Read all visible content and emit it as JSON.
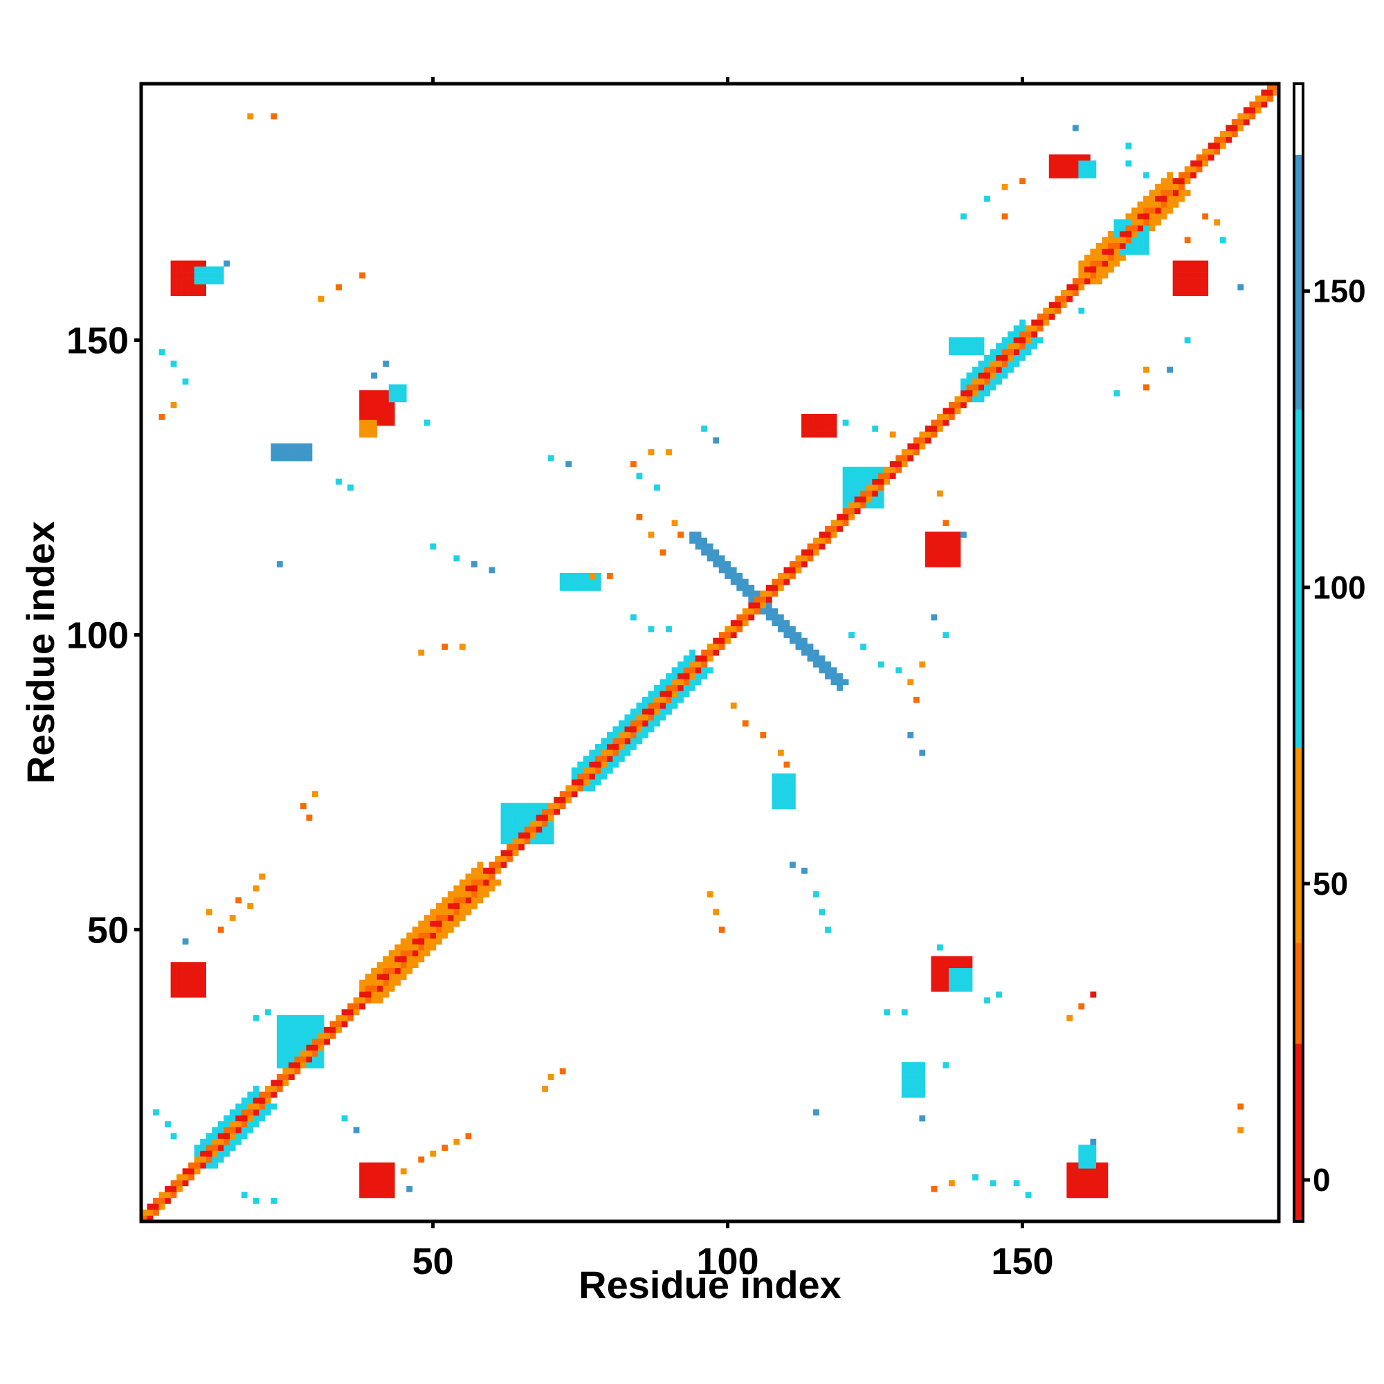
{
  "chart_data": {
    "type": "heatmap",
    "title": "",
    "xlabel": "Residue index",
    "ylabel": "Residue index",
    "xlim": [
      1,
      193
    ],
    "ylim": [
      1,
      193
    ],
    "x_ticks": [
      50,
      100,
      150
    ],
    "y_ticks": [
      50,
      100,
      150
    ],
    "x_tick_labels": [
      "50",
      "100",
      "150"
    ],
    "y_tick_labels": [
      "50",
      "100",
      "150"
    ],
    "colorbar": {
      "range": [
        -7,
        185
      ],
      "ticks": [
        0,
        50,
        100,
        150
      ],
      "tick_labels": [
        "0",
        "50",
        "100",
        "150"
      ],
      "bands": [
        {
          "from": -7,
          "to": 23,
          "color": "#e8160c"
        },
        {
          "from": 23,
          "to": 40,
          "color": "#fa6a00"
        },
        {
          "from": 40,
          "to": 73,
          "color": "#f79200"
        },
        {
          "from": 73,
          "to": 130,
          "color": "#1ed3e6"
        },
        {
          "from": 130,
          "to": 173,
          "color": "#3f97c9"
        },
        {
          "from": 173,
          "to": 185,
          "color": "#ffffff"
        }
      ]
    },
    "grid": false,
    "legend": "colorbar-right",
    "diagonal": {
      "from": 1,
      "to": 193,
      "colors": [
        "#e8160c",
        "#fa6a00",
        "#f79200"
      ]
    },
    "helix_bands": [
      {
        "start": 10,
        "end": 20,
        "width": 3,
        "color": "#1ed3e6"
      },
      {
        "start": 38,
        "end": 58,
        "width": 3,
        "color": "#f79200"
      },
      {
        "start": 74,
        "end": 94,
        "width": 3,
        "color": "#1ed3e6"
      },
      {
        "start": 140,
        "end": 150,
        "width": 3,
        "color": "#1ed3e6"
      },
      {
        "start": 160,
        "end": 175,
        "width": 3,
        "color": "#f79200"
      }
    ],
    "anti_diagonal": {
      "x_from": 94,
      "x_to": 119,
      "sum": 211,
      "color": "#3f97c9"
    },
    "patches": [
      {
        "x": 6,
        "y": 39,
        "w": 6,
        "h": 6,
        "color": "#e8160c"
      },
      {
        "x": 38,
        "y": 5,
        "w": 6,
        "h": 6,
        "color": "#e8160c"
      },
      {
        "x": 6,
        "y": 158,
        "w": 6,
        "h": 6,
        "color": "#e8160c"
      },
      {
        "x": 158,
        "y": 5,
        "w": 7,
        "h": 6,
        "color": "#e8160c"
      },
      {
        "x": 38,
        "y": 136,
        "w": 6,
        "h": 6,
        "color": "#e8160c"
      },
      {
        "x": 135,
        "y": 40,
        "w": 7,
        "h": 6,
        "color": "#e8160c"
      },
      {
        "x": 113,
        "y": 134,
        "w": 6,
        "h": 4,
        "color": "#e8160c"
      },
      {
        "x": 134,
        "y": 112,
        "w": 6,
        "h": 6,
        "color": "#e8160c"
      },
      {
        "x": 155,
        "y": 178,
        "w": 7,
        "h": 4,
        "color": "#e8160c"
      },
      {
        "x": 176,
        "y": 158,
        "w": 6,
        "h": 6,
        "color": "#e8160c"
      },
      {
        "x": 62,
        "y": 65,
        "w": 9,
        "h": 7,
        "color": "#1ed3e6"
      },
      {
        "x": 24,
        "y": 27,
        "w": 8,
        "h": 9,
        "color": "#1ed3e6"
      },
      {
        "x": 120,
        "y": 122,
        "w": 7,
        "h": 7,
        "color": "#1ed3e6"
      },
      {
        "x": 138,
        "y": 148,
        "w": 6,
        "h": 3,
        "color": "#1ed3e6"
      },
      {
        "x": 166,
        "y": 165,
        "w": 6,
        "h": 6,
        "color": "#1ed3e6"
      },
      {
        "x": 130,
        "y": 22,
        "w": 4,
        "h": 6,
        "color": "#1ed3e6"
      },
      {
        "x": 108,
        "y": 71,
        "w": 4,
        "h": 6,
        "color": "#1ed3e6"
      },
      {
        "x": 72,
        "y": 108,
        "w": 7,
        "h": 3,
        "color": "#1ed3e6"
      },
      {
        "x": 23,
        "y": 130,
        "w": 7,
        "h": 3,
        "color": "#3f97c9"
      },
      {
        "x": 43,
        "y": 140,
        "w": 3,
        "h": 3,
        "color": "#1ed3e6"
      },
      {
        "x": 10,
        "y": 160,
        "w": 5,
        "h": 3,
        "color": "#1ed3e6"
      },
      {
        "x": 160,
        "y": 10,
        "w": 3,
        "h": 4,
        "color": "#1ed3e6"
      },
      {
        "x": 138,
        "y": 40,
        "w": 4,
        "h": 4,
        "color": "#1ed3e6"
      },
      {
        "x": 38,
        "y": 134,
        "w": 3,
        "h": 3,
        "color": "#f79200"
      },
      {
        "x": 160,
        "y": 178,
        "w": 3,
        "h": 3,
        "color": "#1ed3e6"
      }
    ],
    "speckles": [
      {
        "x": 18,
        "y": 5,
        "color": "#1ed3e6"
      },
      {
        "x": 20,
        "y": 4,
        "color": "#1ed3e6"
      },
      {
        "x": 23,
        "y": 4,
        "color": "#1ed3e6"
      },
      {
        "x": 46,
        "y": 6,
        "color": "#3f97c9"
      },
      {
        "x": 3,
        "y": 19,
        "color": "#1ed3e6"
      },
      {
        "x": 5,
        "y": 17,
        "color": "#1ed3e6"
      },
      {
        "x": 6,
        "y": 15,
        "color": "#1ed3e6"
      },
      {
        "x": 35,
        "y": 18,
        "color": "#1ed3e6"
      },
      {
        "x": 37,
        "y": 16,
        "color": "#3f97c9"
      },
      {
        "x": 20,
        "y": 35,
        "color": "#1ed3e6"
      },
      {
        "x": 22,
        "y": 36,
        "color": "#1ed3e6"
      },
      {
        "x": 8,
        "y": 48,
        "color": "#3f97c9"
      },
      {
        "x": 12,
        "y": 53,
        "color": "#f79200"
      },
      {
        "x": 14,
        "y": 50,
        "color": "#fa6a00"
      },
      {
        "x": 16,
        "y": 52,
        "color": "#f79200"
      },
      {
        "x": 17,
        "y": 55,
        "color": "#fa6a00"
      },
      {
        "x": 19,
        "y": 54,
        "color": "#f79200"
      },
      {
        "x": 20,
        "y": 57,
        "color": "#f79200"
      },
      {
        "x": 21,
        "y": 59,
        "color": "#f79200"
      },
      {
        "x": 48,
        "y": 11,
        "color": "#fa6a00"
      },
      {
        "x": 50,
        "y": 12,
        "color": "#f79200"
      },
      {
        "x": 52,
        "y": 13,
        "color": "#fa6a00"
      },
      {
        "x": 54,
        "y": 14,
        "color": "#f79200"
      },
      {
        "x": 56,
        "y": 15,
        "color": "#fa6a00"
      },
      {
        "x": 45,
        "y": 9,
        "color": "#f79200"
      },
      {
        "x": 70,
        "y": 25,
        "color": "#f79200"
      },
      {
        "x": 72,
        "y": 26,
        "color": "#fa6a00"
      },
      {
        "x": 69,
        "y": 23,
        "color": "#f79200"
      },
      {
        "x": 28,
        "y": 71,
        "color": "#fa6a00"
      },
      {
        "x": 30,
        "y": 73,
        "color": "#f79200"
      },
      {
        "x": 29,
        "y": 69,
        "color": "#fa6a00"
      },
      {
        "x": 48,
        "y": 97,
        "color": "#f79200"
      },
      {
        "x": 52,
        "y": 98,
        "color": "#fa6a00"
      },
      {
        "x": 55,
        "y": 98,
        "color": "#f79200"
      },
      {
        "x": 98,
        "y": 53,
        "color": "#f79200"
      },
      {
        "x": 99,
        "y": 50,
        "color": "#fa6a00"
      },
      {
        "x": 97,
        "y": 56,
        "color": "#f79200"
      },
      {
        "x": 111,
        "y": 61,
        "color": "#3f97c9"
      },
      {
        "x": 113,
        "y": 60,
        "color": "#3f97c9"
      },
      {
        "x": 115,
        "y": 56,
        "color": "#1ed3e6"
      },
      {
        "x": 116,
        "y": 53,
        "color": "#1ed3e6"
      },
      {
        "x": 117,
        "y": 50,
        "color": "#1ed3e6"
      },
      {
        "x": 103,
        "y": 85,
        "color": "#fa6a00"
      },
      {
        "x": 101,
        "y": 88,
        "color": "#f79200"
      },
      {
        "x": 106,
        "y": 83,
        "color": "#fa6a00"
      },
      {
        "x": 109,
        "y": 80,
        "color": "#f79200"
      },
      {
        "x": 110,
        "y": 78,
        "color": "#fa6a00"
      },
      {
        "x": 84,
        "y": 103,
        "color": "#1ed3e6"
      },
      {
        "x": 87,
        "y": 101,
        "color": "#1ed3e6"
      },
      {
        "x": 90,
        "y": 101,
        "color": "#1ed3e6"
      },
      {
        "x": 89,
        "y": 114,
        "color": "#fa6a00"
      },
      {
        "x": 85,
        "y": 120,
        "color": "#fa6a00"
      },
      {
        "x": 87,
        "y": 117,
        "color": "#f79200"
      },
      {
        "x": 91,
        "y": 119,
        "color": "#f79200"
      },
      {
        "x": 92,
        "y": 117,
        "color": "#fa6a00"
      },
      {
        "x": 84,
        "y": 129,
        "color": "#fa6a00"
      },
      {
        "x": 87,
        "y": 131,
        "color": "#f79200"
      },
      {
        "x": 90,
        "y": 131,
        "color": "#f79200"
      },
      {
        "x": 85,
        "y": 127,
        "color": "#1ed3e6"
      },
      {
        "x": 88,
        "y": 125,
        "color": "#1ed3e6"
      },
      {
        "x": 77,
        "y": 110,
        "color": "#f79200"
      },
      {
        "x": 80,
        "y": 110,
        "color": "#fa6a00"
      },
      {
        "x": 96,
        "y": 135,
        "color": "#1ed3e6"
      },
      {
        "x": 98,
        "y": 133,
        "color": "#3f97c9"
      },
      {
        "x": 70,
        "y": 130,
        "color": "#1ed3e6"
      },
      {
        "x": 73,
        "y": 129,
        "color": "#3f97c9"
      },
      {
        "x": 50,
        "y": 115,
        "color": "#1ed3e6"
      },
      {
        "x": 54,
        "y": 113,
        "color": "#1ed3e6"
      },
      {
        "x": 57,
        "y": 112,
        "color": "#3f97c9"
      },
      {
        "x": 60,
        "y": 111,
        "color": "#3f97c9"
      },
      {
        "x": 24,
        "y": 112,
        "color": "#3f97c9"
      },
      {
        "x": 34,
        "y": 126,
        "color": "#1ed3e6"
      },
      {
        "x": 36,
        "y": 125,
        "color": "#1ed3e6"
      },
      {
        "x": 49,
        "y": 136,
        "color": "#1ed3e6"
      },
      {
        "x": 40,
        "y": 144,
        "color": "#3f97c9"
      },
      {
        "x": 42,
        "y": 146,
        "color": "#3f97c9"
      },
      {
        "x": 4,
        "y": 148,
        "color": "#1ed3e6"
      },
      {
        "x": 6,
        "y": 146,
        "color": "#1ed3e6"
      },
      {
        "x": 8,
        "y": 143,
        "color": "#1ed3e6"
      },
      {
        "x": 4,
        "y": 137,
        "color": "#fa6a00"
      },
      {
        "x": 6,
        "y": 139,
        "color": "#f79200"
      },
      {
        "x": 15,
        "y": 163,
        "color": "#3f97c9"
      },
      {
        "x": 31,
        "y": 157,
        "color": "#f79200"
      },
      {
        "x": 34,
        "y": 159,
        "color": "#fa6a00"
      },
      {
        "x": 38,
        "y": 161,
        "color": "#fa6a00"
      },
      {
        "x": 19,
        "y": 188,
        "color": "#f79200"
      },
      {
        "x": 23,
        "y": 188,
        "color": "#fa6a00"
      },
      {
        "x": 121,
        "y": 100,
        "color": "#1ed3e6"
      },
      {
        "x": 123,
        "y": 98,
        "color": "#1ed3e6"
      },
      {
        "x": 126,
        "y": 95,
        "color": "#1ed3e6"
      },
      {
        "x": 129,
        "y": 94,
        "color": "#1ed3e6"
      },
      {
        "x": 131,
        "y": 92,
        "color": "#f79200"
      },
      {
        "x": 133,
        "y": 95,
        "color": "#f79200"
      },
      {
        "x": 132,
        "y": 89,
        "color": "#fa6a00"
      },
      {
        "x": 131,
        "y": 83,
        "color": "#3f97c9"
      },
      {
        "x": 133,
        "y": 80,
        "color": "#3f97c9"
      },
      {
        "x": 135,
        "y": 103,
        "color": "#3f97c9"
      },
      {
        "x": 137,
        "y": 100,
        "color": "#1ed3e6"
      },
      {
        "x": 125,
        "y": 135,
        "color": "#1ed3e6"
      },
      {
        "x": 128,
        "y": 134,
        "color": "#f79200"
      },
      {
        "x": 120,
        "y": 136,
        "color": "#1ed3e6"
      },
      {
        "x": 136,
        "y": 124,
        "color": "#f79200"
      },
      {
        "x": 137,
        "y": 119,
        "color": "#fa6a00"
      },
      {
        "x": 140,
        "y": 117,
        "color": "#3f97c9"
      },
      {
        "x": 127,
        "y": 36,
        "color": "#1ed3e6"
      },
      {
        "x": 130,
        "y": 36,
        "color": "#1ed3e6"
      },
      {
        "x": 144,
        "y": 38,
        "color": "#1ed3e6"
      },
      {
        "x": 146,
        "y": 39,
        "color": "#1ed3e6"
      },
      {
        "x": 158,
        "y": 35,
        "color": "#f79200"
      },
      {
        "x": 160,
        "y": 37,
        "color": "#fa6a00"
      },
      {
        "x": 162,
        "y": 39,
        "color": "#e8160c"
      },
      {
        "x": 135,
        "y": 6,
        "color": "#fa6a00"
      },
      {
        "x": 138,
        "y": 7,
        "color": "#f79200"
      },
      {
        "x": 142,
        "y": 8,
        "color": "#1ed3e6"
      },
      {
        "x": 145,
        "y": 7,
        "color": "#1ed3e6"
      },
      {
        "x": 149,
        "y": 7,
        "color": "#1ed3e6"
      },
      {
        "x": 151,
        "y": 5,
        "color": "#1ed3e6"
      },
      {
        "x": 136,
        "y": 47,
        "color": "#1ed3e6"
      },
      {
        "x": 115,
        "y": 19,
        "color": "#3f97c9"
      },
      {
        "x": 137,
        "y": 27,
        "color": "#1ed3e6"
      },
      {
        "x": 133,
        "y": 18,
        "color": "#3f97c9"
      },
      {
        "x": 187,
        "y": 20,
        "color": "#fa6a00"
      },
      {
        "x": 187,
        "y": 16,
        "color": "#f79200"
      },
      {
        "x": 162,
        "y": 14,
        "color": "#3f97c9"
      },
      {
        "x": 144,
        "y": 174,
        "color": "#1ed3e6"
      },
      {
        "x": 147,
        "y": 176,
        "color": "#f79200"
      },
      {
        "x": 150,
        "y": 177,
        "color": "#fa6a00"
      },
      {
        "x": 147,
        "y": 171,
        "color": "#fa6a00"
      },
      {
        "x": 140,
        "y": 171,
        "color": "#1ed3e6"
      },
      {
        "x": 168,
        "y": 180,
        "color": "#1ed3e6"
      },
      {
        "x": 171,
        "y": 178,
        "color": "#1ed3e6"
      },
      {
        "x": 181,
        "y": 171,
        "color": "#fa6a00"
      },
      {
        "x": 183,
        "y": 170,
        "color": "#f79200"
      },
      {
        "x": 184,
        "y": 167,
        "color": "#1ed3e6"
      },
      {
        "x": 178,
        "y": 150,
        "color": "#1ed3e6"
      },
      {
        "x": 171,
        "y": 145,
        "color": "#f79200"
      },
      {
        "x": 171,
        "y": 142,
        "color": "#fa6a00"
      },
      {
        "x": 175,
        "y": 145,
        "color": "#3f97c9"
      },
      {
        "x": 166,
        "y": 141,
        "color": "#1ed3e6"
      },
      {
        "x": 168,
        "y": 183,
        "color": "#1ed3e6"
      },
      {
        "x": 159,
        "y": 186,
        "color": "#3f97c9"
      },
      {
        "x": 187,
        "y": 159,
        "color": "#3f97c9"
      },
      {
        "x": 160,
        "y": 155,
        "color": "#1ed3e6"
      },
      {
        "x": 178,
        "y": 167,
        "color": "#fa6a00"
      }
    ]
  }
}
